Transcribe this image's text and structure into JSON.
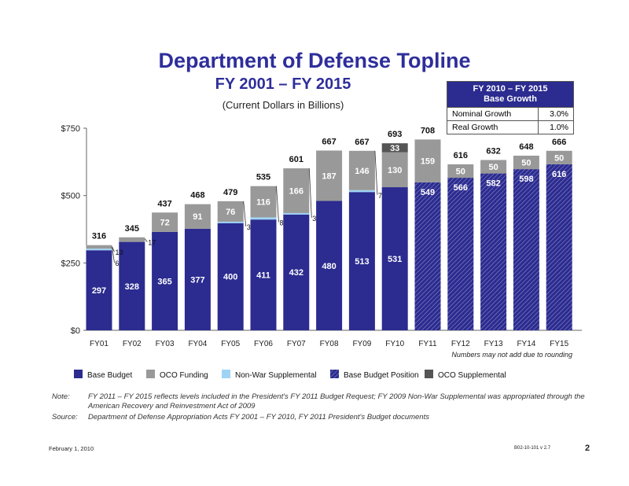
{
  "title": "Department of Defense Topline",
  "subtitle": "FY 2001 – FY 2015",
  "units": "(Current Dollars in Billions)",
  "growth_box": {
    "heading_line1": "FY 2010 – FY 2015",
    "heading_line2": "Base Growth",
    "rows": [
      {
        "label": "Nominal Growth",
        "value": "3.0%"
      },
      {
        "label": "Real Growth",
        "value": "1.0%"
      }
    ]
  },
  "footnote": "Numbers may not add due to rounding",
  "note_key": "Note:",
  "note_text": "FY 2011 – FY 2015 reflects levels included in the President's FY 2011 Budget Request; FY 2009 Non-War Supplemental was appropriated through the American Recovery and Reinvestment Act of 2009",
  "source_key": "Source:",
  "source_text": "Department of Defense Appropriation Acts FY 2001 – FY 2010, FY 2011 President's Budget documents",
  "footer_date": "February 1, 2010",
  "footer_code": "B02-10-101 v 2.7",
  "page_number": "2",
  "colors": {
    "base": "#2b2b90",
    "oco": "#999999",
    "nonwar": "#9fd3f5",
    "base_position": "#2b2b90",
    "oco_supplemental": "#555555"
  },
  "chart_data": {
    "type": "bar",
    "stacked": true,
    "categories": [
      "FY01",
      "FY02",
      "FY03",
      "FY04",
      "FY05",
      "FY06",
      "FY07",
      "FY08",
      "FY09",
      "FY10",
      "FY11",
      "FY12",
      "FY13",
      "FY14",
      "FY15"
    ],
    "y_ticks": [
      "$0",
      "$250",
      "$500",
      "$750"
    ],
    "ylim": [
      0,
      750
    ],
    "series": [
      {
        "name": "Base Budget",
        "key": "base",
        "values": [
          297,
          328,
          365,
          377,
          400,
          411,
          432,
          480,
          513,
          531,
          null,
          null,
          null,
          null,
          null
        ]
      },
      {
        "name": "OCO Funding",
        "key": "oco",
        "values": [
          13,
          17,
          72,
          91,
          76,
          116,
          166,
          187,
          146,
          130,
          159,
          50,
          50,
          50,
          50
        ]
      },
      {
        "name": "Non-War Supplemental",
        "key": "nonwar",
        "values": [
          6,
          null,
          null,
          null,
          3,
          8,
          3,
          null,
          7,
          null,
          null,
          null,
          null,
          null,
          null
        ]
      },
      {
        "name": "Base Budget Position",
        "key": "base_position",
        "values": [
          null,
          null,
          null,
          null,
          null,
          null,
          null,
          null,
          null,
          null,
          549,
          566,
          582,
          598,
          616
        ]
      },
      {
        "name": "OCO Supplemental",
        "key": "oco_supplemental",
        "values": [
          null,
          null,
          null,
          null,
          null,
          null,
          null,
          null,
          null,
          33,
          null,
          null,
          null,
          null,
          null
        ]
      }
    ],
    "totals": [
      316,
      345,
      437,
      468,
      479,
      535,
      601,
      667,
      667,
      693,
      708,
      616,
      632,
      648,
      666
    ],
    "legend_position": "bottom"
  }
}
